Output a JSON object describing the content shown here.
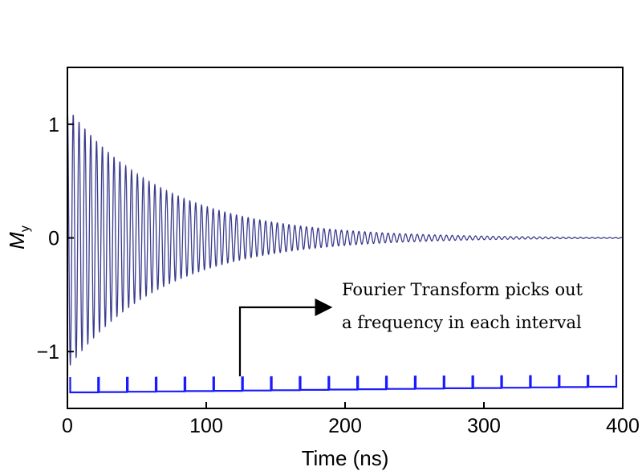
{
  "chart_data": {
    "type": "line",
    "title": "",
    "xlabel": "Time (ns)",
    "ylabel_main": "M",
    "ylabel_sub": "y",
    "xlim": [
      0,
      400
    ],
    "ylim": [
      -1.5,
      1.5
    ],
    "xticks": [
      0,
      100,
      200,
      300,
      400
    ],
    "xtick_labels": [
      "0",
      "100",
      "200",
      "300",
      "400"
    ],
    "yticks": [
      -1,
      0,
      1
    ],
    "ytick_labels": [
      "−1",
      "0",
      "1"
    ],
    "grid": false,
    "series": [
      {
        "kind": "damped_oscillation",
        "description_values": {
          "amplitude": 1.15,
          "decay_time_ns": 70,
          "period_ns": 4.2,
          "t_start": 0,
          "t_end": 400
        },
        "color": "#3b3b8f"
      }
    ],
    "intervals": {
      "count": 19,
      "t_start": 2,
      "t_end": 396,
      "color": "#1a1aff"
    },
    "annotation": {
      "line1": "Fourier Transform picks out",
      "line2": "a frequency in each interval"
    }
  },
  "colors": {
    "signal": "#3b3b8f",
    "intervals": "#1a1aff",
    "frame": "#000000"
  }
}
